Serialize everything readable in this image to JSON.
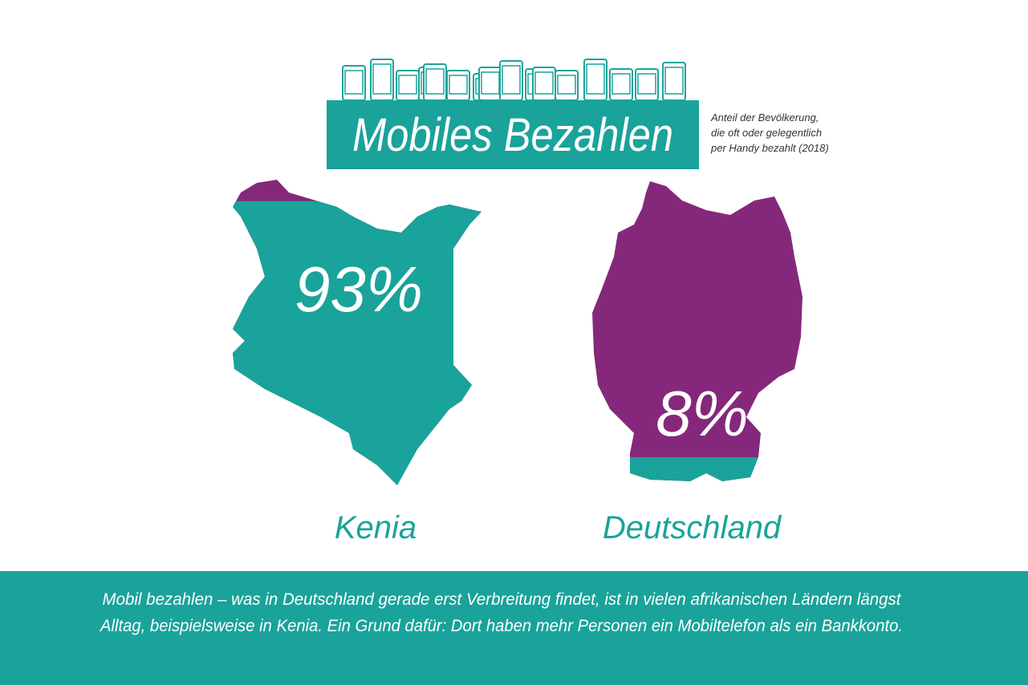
{
  "chart_data": {
    "type": "fill",
    "title": "Mobiles Bezahlen",
    "subtitle": [
      "Anteil der Bevölkerung,",
      "die oft oder gelegentlich",
      "per Handy bezahlt (2018)"
    ],
    "categories": [
      "Kenia",
      "Deutschland"
    ],
    "values": [
      93,
      8
    ],
    "value_labels": [
      "93%",
      "8%"
    ],
    "ylim": [
      0,
      100
    ],
    "color": "#19a39b",
    "rest_color": "#85287c",
    "note": [
      "Mobil bezahlen – was in Deutschland gerade erst Verbreitung findet, ist in vielen afrikanischen Ländern längst",
      "Alltag, beispielsweise in Kenia. Ein Grund dafür: Dort haben mehr Personen ein Mobiltelefon als ein Bankkonto."
    ]
  }
}
